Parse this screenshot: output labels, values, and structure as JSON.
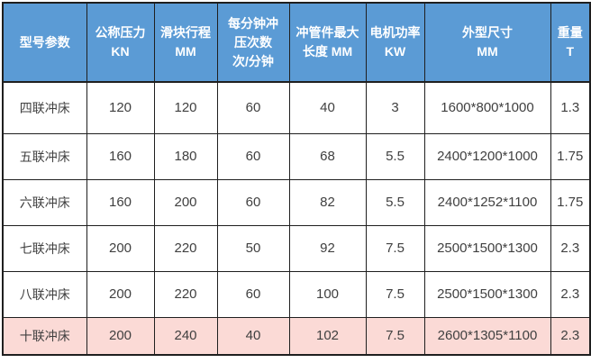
{
  "colors": {
    "header_bg": "#5b9bd5",
    "header_text": "#ffffff",
    "body_bg": "#ffffff",
    "body_text": "#404040",
    "highlight_bg": "#fbdad6",
    "border": "#1f1f1f"
  },
  "table": {
    "headers": [
      {
        "lines": [
          "型号参数"
        ]
      },
      {
        "lines": [
          "公称压力",
          "KN"
        ]
      },
      {
        "lines": [
          "滑块行程",
          "MM"
        ]
      },
      {
        "lines": [
          "每分钟冲",
          "压次数",
          "次/分钟"
        ]
      },
      {
        "lines": [
          "冲管件最大",
          "长度 MM"
        ]
      },
      {
        "lines": [
          "电机功率",
          "KW"
        ]
      },
      {
        "lines": [
          "外型尺寸",
          "MM"
        ]
      },
      {
        "lines": [
          "重量",
          "T"
        ]
      }
    ],
    "rows": [
      {
        "cells": [
          "四联冲床",
          "120",
          "120",
          "60",
          "40",
          "3",
          "1600*800*1000",
          "1.3"
        ],
        "highlighted": false
      },
      {
        "cells": [
          "五联冲床",
          "160",
          "180",
          "60",
          "68",
          "5.5",
          "2400*1200*1000",
          "1.75"
        ],
        "highlighted": false
      },
      {
        "cells": [
          "六联冲床",
          "160",
          "200",
          "60",
          "82",
          "5.5",
          "2400*1252*1100",
          "1.75"
        ],
        "highlighted": false
      },
      {
        "cells": [
          "七联冲床",
          "200",
          "220",
          "50",
          "92",
          "7.5",
          "2500*1500*1300",
          "2.3"
        ],
        "highlighted": false
      },
      {
        "cells": [
          "八联冲床",
          "200",
          "220",
          "60",
          "100",
          "7.5",
          "2500*1500*1300",
          "2.3"
        ],
        "highlighted": false
      },
      {
        "cells": [
          "十联冲床",
          "200",
          "240",
          "40",
          "102",
          "7.5",
          "2600*1305*1100",
          "2.3"
        ],
        "highlighted": true
      }
    ]
  },
  "chart_data": {
    "type": "table",
    "title": "",
    "columns": [
      "型号参数",
      "公称压力 KN",
      "滑块行程 MM",
      "每分钟冲压次数 次/分钟",
      "冲管件最大长度 MM",
      "电机功率 KW",
      "外型尺寸 MM",
      "重量 T"
    ],
    "rows": [
      [
        "四联冲床",
        120,
        120,
        60,
        40,
        3,
        "1600*800*1000",
        1.3
      ],
      [
        "五联冲床",
        160,
        180,
        60,
        68,
        5.5,
        "2400*1200*1000",
        1.75
      ],
      [
        "六联冲床",
        160,
        200,
        60,
        82,
        5.5,
        "2400*1252*1100",
        1.75
      ],
      [
        "七联冲床",
        200,
        220,
        50,
        92,
        7.5,
        "2500*1500*1300",
        2.3
      ],
      [
        "八联冲床",
        200,
        220,
        60,
        100,
        7.5,
        "2500*1500*1300",
        2.3
      ],
      [
        "十联冲床",
        200,
        240,
        40,
        102,
        7.5,
        "2600*1305*1100",
        2.3
      ]
    ],
    "highlighted_row": "十联冲床",
    "legend_position": "none",
    "grid": true
  }
}
